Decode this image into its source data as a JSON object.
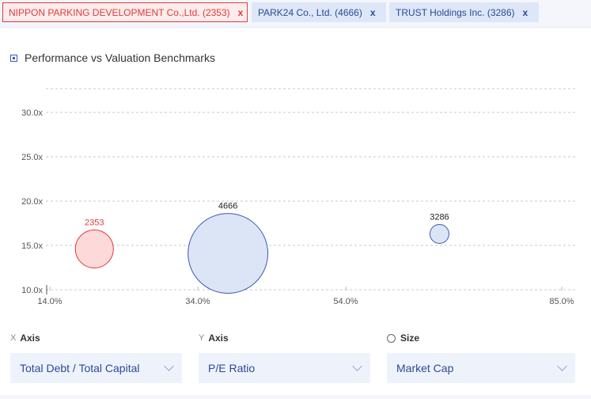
{
  "tags": [
    {
      "label": "NIPPON PARKING DEVELOPMENT Co.,Ltd. (2353)",
      "close": "x"
    },
    {
      "label": "PARK24 Co., Ltd. (4666)",
      "close": "x"
    },
    {
      "label": "TRUST Holdings Inc. (3286)",
      "close": "x"
    }
  ],
  "chart_title": "Performance vs Valuation Benchmarks",
  "chart_data": {
    "type": "scatter",
    "x_ticks": [
      "14.0%",
      "34.0%",
      "54.0%",
      "85.0%"
    ],
    "y_ticks": [
      "10.0x",
      "15.0x",
      "20.0x",
      "25.0x",
      "30.0x"
    ],
    "points": [
      {
        "label": "2353",
        "x": 20.0,
        "y": 14.6,
        "size": 1.0,
        "color": "#e23b3b",
        "fill": "#fdd9d9"
      },
      {
        "label": "4666",
        "x": 38.0,
        "y": 14.1,
        "size": 2.1,
        "color": "#3a5bb0",
        "fill": "#dbe5f6"
      },
      {
        "label": "3286",
        "x": 66.5,
        "y": 16.3,
        "size": 0.25,
        "color": "#3a5bb0",
        "fill": "#dbe5f6"
      }
    ]
  },
  "controls": {
    "x": {
      "prefix": "X",
      "label": "Axis",
      "value": "Total Debt / Total Capital"
    },
    "y": {
      "prefix": "Y",
      "label": "Axis",
      "value": "P/E Ratio"
    },
    "size": {
      "label": "Size",
      "value": "Market Cap"
    }
  }
}
